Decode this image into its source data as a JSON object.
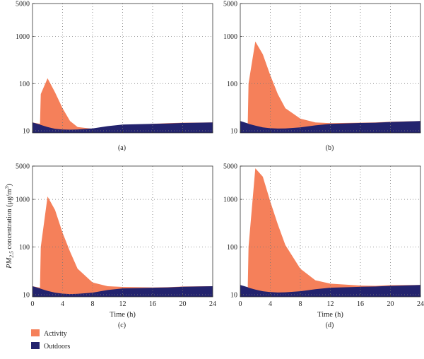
{
  "chart_data": [
    {
      "panel": "(a)",
      "type": "area",
      "x": [
        0,
        1,
        1.1,
        2,
        3,
        4,
        5,
        6,
        8,
        10,
        12,
        16,
        18,
        20,
        24
      ],
      "series": [
        {
          "name": "Activity",
          "color": "#F5805A",
          "values": [
            15,
            14,
            60,
            130,
            65,
            30,
            16,
            12,
            11,
            12,
            13,
            14,
            14.5,
            14.8,
            15
          ]
        },
        {
          "name": "Outdoors",
          "color": "#23236E",
          "values": [
            15,
            13.5,
            13.3,
            12,
            11,
            10.6,
            10.5,
            10.6,
            11.2,
            12.5,
            13.5,
            14,
            14.2,
            14.6,
            15
          ]
        }
      ],
      "xlim": [
        0,
        24
      ],
      "ylim": [
        9,
        5000
      ],
      "yscale": "log",
      "xticks": [
        "0",
        "4",
        "8",
        "12",
        "16",
        "20",
        "24"
      ],
      "yticks": [
        "10",
        "100",
        "1000",
        "5000"
      ],
      "show_xtick_labels": false,
      "xlabel": "",
      "ylabel": ""
    },
    {
      "panel": "(b)",
      "type": "area",
      "x": [
        0,
        1,
        1.1,
        2,
        3,
        4,
        5,
        6,
        8,
        10,
        12,
        16,
        18,
        20,
        24
      ],
      "series": [
        {
          "name": "Activity",
          "color": "#F5805A",
          "values": [
            16,
            14,
            100,
            780,
            420,
            150,
            60,
            30,
            18,
            15,
            14.5,
            14.8,
            15,
            15.5,
            16
          ]
        },
        {
          "name": "Outdoors",
          "color": "#23236E",
          "values": [
            16,
            14.3,
            14,
            12.8,
            11.8,
            11.3,
            11.1,
            11.2,
            11.8,
            13,
            14,
            14.6,
            14.8,
            15.3,
            16
          ]
        }
      ],
      "xlim": [
        0,
        24
      ],
      "ylim": [
        9,
        5000
      ],
      "yscale": "log",
      "xticks": [
        "0",
        "4",
        "8",
        "12",
        "16",
        "20",
        "24"
      ],
      "yticks": [
        "10",
        "100",
        "1000",
        "5000"
      ],
      "show_xtick_labels": false,
      "xlabel": "",
      "ylabel": ""
    },
    {
      "panel": "(c)",
      "type": "area",
      "x": [
        0,
        1,
        1.1,
        2,
        3,
        4,
        5,
        6,
        8,
        10,
        12,
        16,
        18,
        20,
        24
      ],
      "series": [
        {
          "name": "Activity",
          "color": "#F5805A",
          "values": [
            15,
            14,
            100,
            1150,
            600,
            200,
            80,
            35,
            18,
            15,
            14.5,
            14.2,
            14.3,
            14.8,
            15
          ]
        },
        {
          "name": "Outdoors",
          "color": "#23236E",
          "values": [
            15,
            13.5,
            13.3,
            12,
            11,
            10.5,
            10.3,
            10.4,
            11,
            12.5,
            13.5,
            14,
            14.2,
            14.6,
            15
          ]
        }
      ],
      "xlim": [
        0,
        24
      ],
      "ylim": [
        9,
        5000
      ],
      "yscale": "log",
      "xticks": [
        "0",
        "4",
        "8",
        "12",
        "16",
        "20",
        "24"
      ],
      "yticks": [
        "10",
        "100",
        "1000",
        "5000"
      ],
      "show_xtick_labels": true,
      "xlabel": "Time (h)",
      "ylabel": "PM2.5 concentration (μg/m3)"
    },
    {
      "panel": "(d)",
      "type": "area",
      "x": [
        0,
        1,
        1.1,
        2,
        3,
        4,
        5,
        6,
        8,
        10,
        12,
        16,
        18,
        20,
        24
      ],
      "series": [
        {
          "name": "Activity",
          "color": "#F5805A",
          "values": [
            16,
            14,
            100,
            4500,
            3000,
            900,
            300,
            110,
            35,
            20,
            17,
            15.5,
            15.3,
            15.8,
            16
          ]
        },
        {
          "name": "Outdoors",
          "color": "#23236E",
          "values": [
            16,
            14.3,
            14,
            12.8,
            11.8,
            11.3,
            11.1,
            11.2,
            11.8,
            13,
            14,
            14.6,
            14.8,
            15.3,
            16
          ]
        }
      ],
      "xlim": [
        0,
        24
      ],
      "ylim": [
        9,
        5000
      ],
      "yscale": "log",
      "xticks": [
        "0",
        "4",
        "8",
        "12",
        "16",
        "20",
        "24"
      ],
      "yticks": [
        "10",
        "100",
        "1000",
        "5000"
      ],
      "show_xtick_labels": true,
      "xlabel": "Time (h)",
      "ylabel": ""
    }
  ],
  "ylabel_parts": {
    "pm": "PM",
    "sub": "2.5",
    "conc": " concentration (",
    "mu": "μg/m",
    "sup": "3",
    "close": ")"
  },
  "legend": [
    {
      "label": "Activity",
      "color": "#F5805A"
    },
    {
      "label": "Outdoors",
      "color": "#23236E"
    }
  ]
}
